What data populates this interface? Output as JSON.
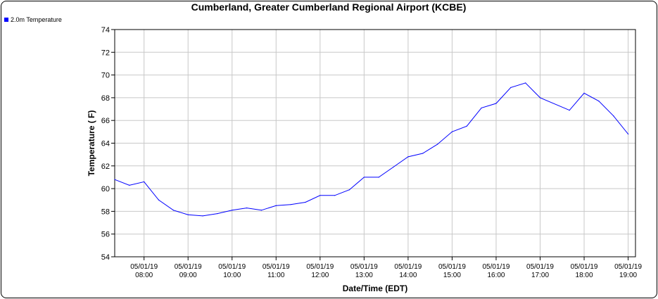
{
  "chart_data": {
    "type": "line",
    "title": "Cumberland, Greater Cumberland Regional Airport (KCBE)",
    "xlabel": "Date/Time (EDT)",
    "ylabel": "Temperature ( F)",
    "ylim": [
      54,
      74
    ],
    "yticks": [
      54,
      56,
      58,
      60,
      62,
      64,
      66,
      68,
      70,
      72,
      74
    ],
    "xlim": [
      "05/01/19 07:20",
      "05/01/19 19:10"
    ],
    "xticks": [
      {
        "date": "05/01/19",
        "time": "08:00"
      },
      {
        "date": "05/01/19",
        "time": "09:00"
      },
      {
        "date": "05/01/19",
        "time": "10:00"
      },
      {
        "date": "05/01/19",
        "time": "11:00"
      },
      {
        "date": "05/01/19",
        "time": "12:00"
      },
      {
        "date": "05/01/19",
        "time": "13:00"
      },
      {
        "date": "05/01/19",
        "time": "14:00"
      },
      {
        "date": "05/01/19",
        "time": "15:00"
      },
      {
        "date": "05/01/19",
        "time": "16:00"
      },
      {
        "date": "05/01/19",
        "time": "17:00"
      },
      {
        "date": "05/01/19",
        "time": "18:00"
      },
      {
        "date": "05/01/19",
        "time": "19:00"
      }
    ],
    "grid": true,
    "legend_position": "top-left",
    "series": [
      {
        "name": "2.0m Temperature",
        "color": "#0000ff",
        "points": [
          {
            "x": "05/01/19 07:20",
            "y": 60.8
          },
          {
            "x": "05/01/19 07:40",
            "y": 60.3
          },
          {
            "x": "05/01/19 08:00",
            "y": 60.6
          },
          {
            "x": "05/01/19 08:20",
            "y": 59.0
          },
          {
            "x": "05/01/19 08:40",
            "y": 58.1
          },
          {
            "x": "05/01/19 09:00",
            "y": 57.7
          },
          {
            "x": "05/01/19 09:20",
            "y": 57.6
          },
          {
            "x": "05/01/19 09:40",
            "y": 57.8
          },
          {
            "x": "05/01/19 10:00",
            "y": 58.1
          },
          {
            "x": "05/01/19 10:20",
            "y": 58.3
          },
          {
            "x": "05/01/19 10:40",
            "y": 58.1
          },
          {
            "x": "05/01/19 11:00",
            "y": 58.5
          },
          {
            "x": "05/01/19 11:20",
            "y": 58.6
          },
          {
            "x": "05/01/19 11:40",
            "y": 58.8
          },
          {
            "x": "05/01/19 12:00",
            "y": 59.4
          },
          {
            "x": "05/01/19 12:20",
            "y": 59.4
          },
          {
            "x": "05/01/19 12:40",
            "y": 59.9
          },
          {
            "x": "05/01/19 13:00",
            "y": 61.0
          },
          {
            "x": "05/01/19 13:20",
            "y": 61.0
          },
          {
            "x": "05/01/19 13:40",
            "y": 61.9
          },
          {
            "x": "05/01/19 14:00",
            "y": 62.8
          },
          {
            "x": "05/01/19 14:20",
            "y": 63.1
          },
          {
            "x": "05/01/19 14:40",
            "y": 63.9
          },
          {
            "x": "05/01/19 15:00",
            "y": 65.0
          },
          {
            "x": "05/01/19 15:20",
            "y": 65.5
          },
          {
            "x": "05/01/19 15:40",
            "y": 67.1
          },
          {
            "x": "05/01/19 16:00",
            "y": 67.5
          },
          {
            "x": "05/01/19 16:20",
            "y": 68.9
          },
          {
            "x": "05/01/19 16:40",
            "y": 69.3
          },
          {
            "x": "05/01/19 17:00",
            "y": 68.0
          },
          {
            "x": "05/01/19 17:40",
            "y": 66.9
          },
          {
            "x": "05/01/19 18:00",
            "y": 68.4
          },
          {
            "x": "05/01/19 18:20",
            "y": 67.7
          },
          {
            "x": "05/01/19 18:40",
            "y": 66.4
          },
          {
            "x": "05/01/19 19:00",
            "y": 64.8
          }
        ]
      }
    ]
  }
}
